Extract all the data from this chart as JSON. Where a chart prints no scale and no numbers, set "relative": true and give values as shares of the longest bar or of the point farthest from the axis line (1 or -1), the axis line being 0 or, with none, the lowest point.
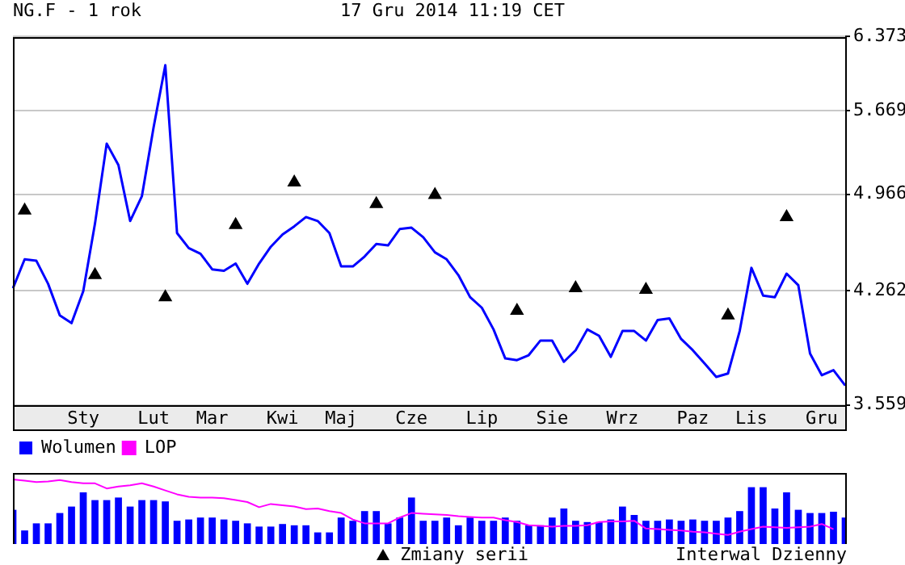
{
  "chart_data": [
    {
      "type": "line",
      "title": "NG.F - 1 rok",
      "subtitle": "17 Gru 2014 11:19 CET",
      "annotations": [
        "Interwal Dzienny"
      ],
      "log": true,
      "grid": "y",
      "legend": "bottom",
      "categories": [
        null,
        null,
        null,
        null,
        null,
        null,
        "Sty",
        null,
        null,
        null,
        null,
        null,
        "Lut",
        null,
        null,
        null,
        null,
        "Mar",
        null,
        null,
        null,
        null,
        null,
        "Kwi",
        null,
        null,
        null,
        null,
        "Maj",
        null,
        null,
        null,
        null,
        null,
        "Cze",
        null,
        null,
        null,
        null,
        null,
        "Lip",
        null,
        null,
        null,
        null,
        null,
        "Sie",
        null,
        null,
        null,
        null,
        null,
        "Wrz",
        null,
        null,
        null,
        null,
        null,
        "Paz",
        null,
        null,
        null,
        null,
        "Lis",
        null,
        null,
        null,
        null,
        null,
        "Gru",
        null,
        null
      ],
      "ylim": [
        3.559,
        6.373
      ],
      "yticks": [
        3.559,
        4.262,
        4.966,
        5.669,
        6.373
      ],
      "series": [
        {
          "color": "#0000ff",
          "values": [
            4.28,
            4.48,
            4.47,
            4.31,
            4.1,
            4.05,
            4.26,
            4.74,
            5.38,
            5.2,
            4.76,
            4.95,
            5.52,
            6.09,
            4.67,
            4.56,
            4.52,
            4.41,
            4.4,
            4.45,
            4.31,
            4.45,
            4.57,
            4.66,
            4.72,
            4.79,
            4.76,
            4.67,
            4.43,
            4.43,
            4.5,
            4.59,
            4.58,
            4.7,
            4.71,
            4.64,
            4.53,
            4.48,
            4.37,
            4.22,
            4.15,
            4.01,
            3.83,
            3.82,
            3.85,
            3.94,
            3.94,
            3.81,
            3.88,
            4.01,
            3.97,
            3.84,
            4.0,
            4.0,
            3.94,
            4.07,
            4.08,
            3.95,
            3.88,
            3.8,
            3.72,
            3.74,
            4.0,
            4.42,
            4.23,
            4.22,
            4.38,
            4.3,
            3.86,
            3.73,
            3.76,
            3.67
          ]
        },
        {
          "type": "scatter",
          "name": "Zmiany serii",
          "color": "#000000",
          "marker": "triangle",
          "values": [
            null,
            4.84,
            null,
            null,
            null,
            null,
            null,
            4.37,
            null,
            null,
            null,
            null,
            null,
            4.22,
            null,
            null,
            null,
            null,
            null,
            4.73,
            null,
            null,
            null,
            null,
            5.06,
            null,
            null,
            null,
            null,
            null,
            null,
            4.89,
            null,
            null,
            null,
            null,
            4.96,
            null,
            null,
            null,
            null,
            null,
            null,
            4.13,
            null,
            null,
            null,
            null,
            4.28,
            null,
            null,
            null,
            null,
            null,
            4.27,
            null,
            null,
            null,
            null,
            null,
            null,
            4.1,
            null,
            null,
            null,
            null,
            4.79,
            null,
            null,
            null,
            null,
            null
          ]
        }
      ]
    },
    {
      "type": "bar",
      "relative": true,
      "tick_labels": false,
      "legend": "top left",
      "categories": [
        null,
        null,
        null,
        null,
        null,
        null,
        null,
        null,
        null,
        null,
        null,
        null,
        null,
        null,
        null,
        null,
        null,
        null,
        null,
        null,
        null,
        null,
        null,
        null,
        null,
        null,
        null,
        null,
        null,
        null,
        null,
        null,
        null,
        null,
        null,
        null,
        null,
        null,
        null,
        null,
        null,
        null,
        null,
        null,
        null,
        null,
        null,
        null,
        null,
        null,
        null,
        null,
        null,
        null,
        null,
        null,
        null,
        null,
        null,
        null,
        null,
        null,
        null,
        null,
        null,
        null,
        null,
        null,
        null,
        null,
        null,
        null
      ],
      "series": [
        {
          "name": "Wolumen",
          "color": "#0000ff",
          "values": [
            0.53,
            0.21,
            0.32,
            0.32,
            0.48,
            0.58,
            0.8,
            0.68,
            0.68,
            0.72,
            0.58,
            0.68,
            0.68,
            0.66,
            0.36,
            0.38,
            0.41,
            0.41,
            0.38,
            0.36,
            0.32,
            0.27,
            0.27,
            0.31,
            0.29,
            0.29,
            0.18,
            0.18,
            0.41,
            0.36,
            0.51,
            0.51,
            0.32,
            0.41,
            0.72,
            0.36,
            0.36,
            0.41,
            0.29,
            0.41,
            0.36,
            0.36,
            0.41,
            0.36,
            0.29,
            0.29,
            0.41,
            0.55,
            0.36,
            0.34,
            0.34,
            0.38,
            0.58,
            0.45,
            0.36,
            0.36,
            0.38,
            0.36,
            0.38,
            0.36,
            0.36,
            0.41,
            0.51,
            0.88,
            0.88,
            0.55,
            0.8,
            0.53,
            0.48,
            0.48,
            0.5,
            0.41
          ]
        },
        {
          "type": "line",
          "name": "LOP",
          "color": "#ff00ff",
          "values": [
            1.0,
            0.98,
            0.96,
            0.97,
            0.99,
            0.96,
            0.94,
            0.94,
            0.86,
            0.89,
            0.91,
            0.94,
            0.89,
            0.83,
            0.77,
            0.73,
            0.72,
            0.72,
            0.71,
            0.68,
            0.65,
            0.57,
            0.62,
            0.6,
            0.58,
            0.54,
            0.55,
            0.51,
            0.48,
            0.38,
            0.32,
            0.32,
            0.32,
            0.41,
            0.48,
            0.47,
            0.46,
            0.45,
            0.43,
            0.42,
            0.41,
            0.41,
            0.37,
            0.34,
            0.29,
            0.28,
            0.27,
            0.28,
            0.28,
            0.29,
            0.34,
            0.35,
            0.35,
            0.36,
            0.24,
            0.23,
            0.22,
            0.21,
            0.19,
            0.18,
            0.16,
            0.14,
            0.19,
            0.23,
            0.27,
            0.26,
            0.25,
            0.26,
            0.27,
            0.31,
            0.23,
            null
          ]
        }
      ]
    }
  ]
}
